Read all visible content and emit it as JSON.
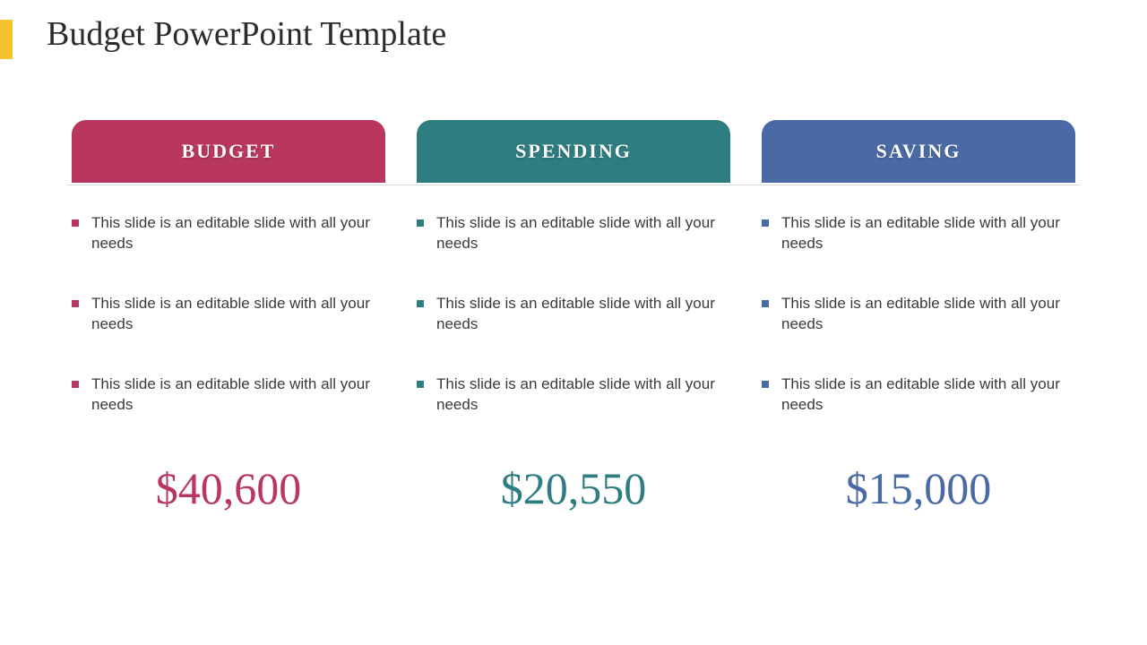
{
  "title": "Budget PowerPoint Template",
  "accent_bar_color": "#f4c430",
  "divider_color": "#d9d9d9",
  "body_text_color": "#3a3a3a",
  "title_color": "#2b2b2b",
  "title_fontsize_pt": 28,
  "pill_fontsize_pt": 17,
  "bullet_fontsize_pt": 13,
  "amount_fontsize_pt": 38,
  "columns": [
    {
      "id": "budget",
      "header": "BUDGET",
      "pill_color": "#b9375e",
      "bullet_color": "#b9375e",
      "amount_color": "#b9375e",
      "amount": "$40,600",
      "bullets": [
        "This slide is an editable slide with all your needs",
        "This slide is an editable slide with all your needs",
        "This slide is an editable slide with all your needs"
      ]
    },
    {
      "id": "spending",
      "header": "SPENDING",
      "pill_color": "#2e7d80",
      "bullet_color": "#2e7d80",
      "amount_color": "#2e7d80",
      "amount": "$20,550",
      "bullets": [
        "This slide is an editable slide with all your needs",
        "This slide is an editable slide with all your needs",
        "This slide is an editable slide with all your needs"
      ]
    },
    {
      "id": "saving",
      "header": "SAVING",
      "pill_color": "#4a6aa5",
      "bullet_color": "#4a6aa5",
      "amount_color": "#4a6aa5",
      "amount": "$15,000",
      "bullets": [
        "This slide is an editable slide with all your needs",
        "This slide is an editable slide with all your needs",
        "This slide is an editable slide with all your needs"
      ]
    }
  ]
}
